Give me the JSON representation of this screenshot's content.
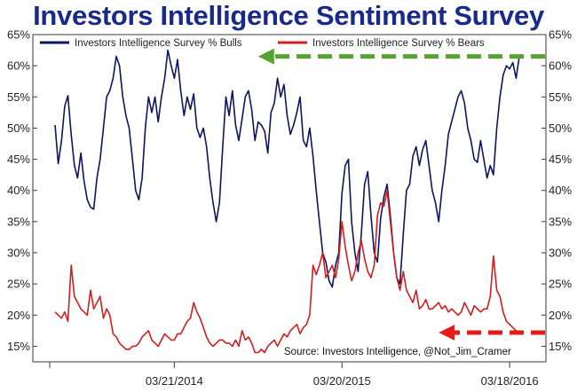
{
  "title": "Investors Intelligence Sentiment Survey",
  "chart_data": {
    "type": "line",
    "title": "Investors Intelligence Sentiment Survey",
    "xlabel": "",
    "ylabel": "",
    "ylim": [
      12.5,
      65
    ],
    "y_ticks": [
      "15%",
      "20%",
      "25%",
      "30%",
      "35%",
      "40%",
      "45%",
      "50%",
      "55%",
      "60%",
      "65%"
    ],
    "y_tick_values": [
      15,
      20,
      25,
      30,
      35,
      40,
      45,
      50,
      55,
      60,
      65
    ],
    "x_ticks": [
      "03/21/2014",
      "03/20/2015",
      "03/18/2016"
    ],
    "x_tick_weeks": [
      37,
      89,
      141
    ],
    "legend_position": "top",
    "grid": false,
    "source": "Source: Investors Intelligence, @Not_Jim_Cramer",
    "x_unit": "weeks",
    "series": [
      {
        "name": "Investors Intelligence Survey % Bulls",
        "color": "#0d1560",
        "values": [
          50.5,
          44.3,
          48.0,
          53.5,
          55.2,
          49.0,
          44.0,
          42.0,
          46.0,
          41.5,
          38.5,
          37.3,
          37.0,
          42.0,
          45.0,
          50.0,
          55.0,
          56.0,
          58.0,
          61.5,
          60.0,
          55.0,
          52.0,
          50.0,
          45.0,
          40.0,
          38.5,
          42.0,
          50.0,
          55.0,
          52.5,
          55.0,
          51.0,
          55.0,
          58.0,
          62.5,
          60.0,
          58.0,
          61.0,
          56.0,
          52.0,
          55.0,
          53.0,
          55.5,
          50.0,
          48.5,
          50.0,
          47.0,
          42.0,
          38.0,
          35.0,
          38.0,
          47.0,
          55.0,
          52.0,
          56.0,
          50.5,
          48.0,
          51.5,
          55.0,
          56.0,
          53.0,
          48.0,
          51.0,
          50.5,
          49.5,
          46.0,
          52.5,
          54.0,
          58.0,
          55.0,
          57.0,
          52.0,
          49.0,
          50.5,
          52.5,
          55.0,
          48.0,
          47.0,
          50.0,
          45.5,
          40.0,
          35.0,
          30.0,
          28.5,
          25.5,
          24.5,
          28.0,
          30.0,
          39.5,
          44.0,
          45.0,
          35.0,
          30.0,
          27.0,
          33.0,
          41.0,
          43.0,
          36.0,
          30.0,
          28.5,
          35.5,
          39.0,
          41.0,
          36.0,
          30.0,
          26.0,
          25.0,
          33.0,
          40.0,
          41.0,
          45.5,
          47.0,
          44.0,
          46.5,
          48.0,
          44.0,
          40.0,
          38.0,
          35.0,
          40.0,
          44.0,
          49.0,
          51.0,
          53.0,
          55.0,
          56.0,
          54.0,
          50.0,
          48.0,
          45.0,
          44.5,
          48.0,
          45.0,
          42.0,
          44.0,
          42.5,
          50.0,
          55.0,
          58.5,
          60.0,
          59.5,
          60.5,
          58.0,
          61.5
        ]
      },
      {
        "name": "Investors Intelligence Survey % Bears",
        "color": "#d21e1e",
        "values": [
          20.5,
          20.0,
          19.5,
          20.5,
          19.0,
          28.0,
          23.0,
          22.0,
          21.0,
          20.5,
          20.0,
          24.0,
          21.0,
          22.0,
          23.0,
          19.5,
          21.0,
          20.0,
          17.0,
          16.5,
          15.5,
          15.0,
          14.5,
          14.5,
          15.0,
          15.0,
          15.5,
          16.5,
          17.0,
          17.5,
          16.0,
          15.5,
          15.0,
          16.0,
          17.0,
          16.5,
          16.0,
          16.0,
          17.0,
          17.0,
          18.0,
          19.0,
          19.5,
          22.0,
          20.5,
          19.5,
          18.0,
          16.5,
          15.5,
          15.0,
          15.5,
          16.0,
          16.0,
          15.5,
          15.5,
          15.0,
          16.0,
          15.0,
          17.5,
          16.0,
          16.5,
          15.5,
          14.0,
          14.0,
          14.5,
          14.0,
          15.0,
          15.5,
          16.0,
          15.0,
          16.0,
          17.0,
          16.5,
          17.5,
          18.0,
          18.5,
          17.0,
          18.0,
          18.5,
          20.0,
          28.0,
          26.5,
          28.0,
          30.0,
          26.0,
          27.0,
          28.0,
          26.0,
          29.0,
          35.0,
          31.0,
          28.0,
          25.5,
          27.0,
          30.0,
          32.0,
          29.0,
          27.0,
          26.0,
          28.0,
          36.0,
          38.0,
          37.5,
          40.0,
          35.0,
          30.0,
          26.0,
          24.0,
          27.0,
          24.0,
          23.0,
          22.0,
          24.0,
          21.0,
          21.5,
          22.5,
          21.0,
          21.0,
          21.5,
          22.0,
          21.0,
          21.5,
          20.5,
          21.0,
          20.5,
          20.0,
          20.5,
          22.0,
          21.0,
          20.0,
          21.5,
          21.0,
          20.5,
          21.0,
          21.0,
          23.0,
          29.5,
          24.0,
          23.0,
          20.5,
          19.0,
          18.5,
          18.0,
          17.5
        ]
      }
    ],
    "annotations": [
      {
        "type": "dashed-arrow",
        "color": "#56a232",
        "direction": "left",
        "from_week": 152,
        "to_week": 63,
        "at_y": 61.5
      },
      {
        "type": "dashed-arrow",
        "color": "#e31b1b",
        "direction": "left",
        "from_week": 152,
        "to_week": 119,
        "at_y": 17.2
      }
    ]
  }
}
